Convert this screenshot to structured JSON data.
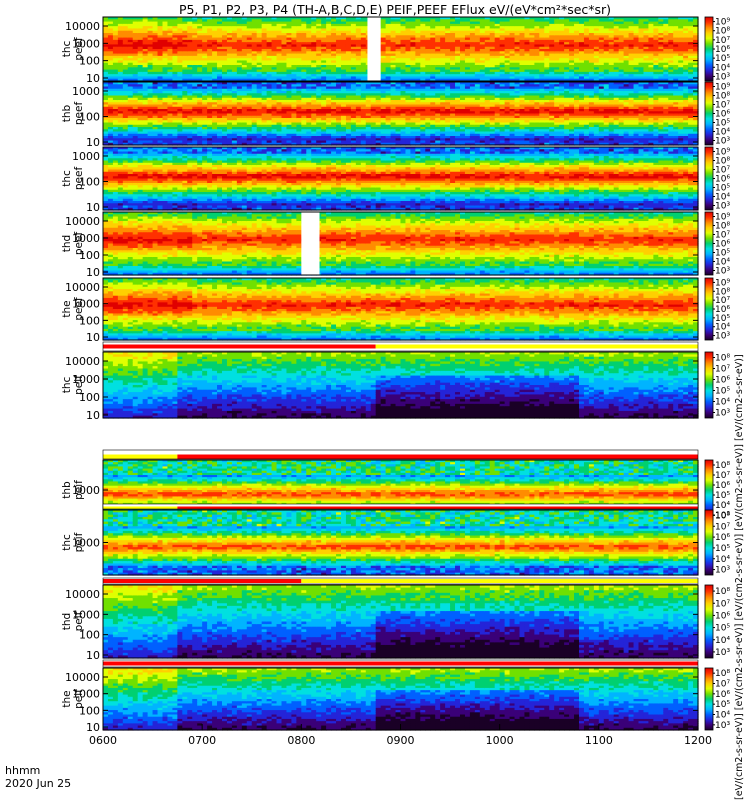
{
  "chart_data": {
    "type": "heatmap",
    "title": "P5, P1, P2, P3, P4 (TH-A,B,C,D,E) PEIF,PEEF EFlux eV/(eV*cm²*sec*sr)",
    "x_axis": {
      "label": "hhmm",
      "date": "2020 Jun 25",
      "range": [
        "0600",
        "1200"
      ],
      "ticks": [
        "0600",
        "0700",
        "0800",
        "0900",
        "1000",
        "1100",
        "1200"
      ]
    },
    "colorbar": {
      "label": "[eV/(cm2-s-sr-eV)] [eV/(cm2-s-sr-eV)] [eV/(cm2-s-sr-eV)] [eV/(cm2-s-sr-eV)] [eV/(cm2-s-sr-eV)]",
      "scale": "log",
      "colormap": "rainbow"
    },
    "panels": [
      {
        "probe": "thc",
        "product": "peef",
        "y_label": [
          "thc",
          "peef"
        ],
        "y_ticks": [
          "10",
          "100",
          "1000",
          "10000"
        ],
        "y_scale": "log",
        "cb_ticks": [
          "10³",
          "10⁴",
          "10⁵",
          "10⁶",
          "10⁷",
          "10⁸",
          "10⁹"
        ],
        "data_gaps_hhmm": [
          [
            "0840",
            "0848"
          ]
        ],
        "band": "electron",
        "quiet_band": false
      },
      {
        "probe": "thb",
        "product": "peef",
        "y_label": [
          "thb",
          "peef"
        ],
        "y_ticks": [
          "10",
          "100",
          "1000"
        ],
        "y_scale": "log",
        "cb_ticks": [
          "10³",
          "10⁴",
          "10⁵",
          "10⁶",
          "10⁷",
          "10⁸",
          "10⁹"
        ],
        "data_gaps_hhmm": [],
        "band": "electron",
        "quiet_band": true
      },
      {
        "probe": "thc",
        "product": "peef",
        "y_label": [
          "thc",
          "peef"
        ],
        "y_ticks": [
          "10",
          "100",
          "1000"
        ],
        "y_scale": "log",
        "cb_ticks": [
          "10³",
          "10⁴",
          "10⁵",
          "10⁶",
          "10⁷",
          "10⁸",
          "10⁹"
        ],
        "data_gaps_hhmm": [],
        "band": "electron",
        "quiet_band": true
      },
      {
        "probe": "thd",
        "product": "peef",
        "y_label": [
          "thd",
          "peef"
        ],
        "y_ticks": [
          "10",
          "100",
          "1000",
          "10000"
        ],
        "y_scale": "log",
        "cb_ticks": [
          "10³",
          "10⁴",
          "10⁵",
          "10⁶",
          "10⁷",
          "10⁸",
          "10⁹"
        ],
        "data_gaps_hhmm": [
          [
            "0800",
            "0811"
          ]
        ],
        "band": "electron",
        "quiet_band": false
      },
      {
        "probe": "the",
        "product": "peef",
        "y_label": [
          "the",
          "peef"
        ],
        "y_ticks": [
          "10",
          "100",
          "1000",
          "10000"
        ],
        "y_scale": "log",
        "cb_ticks": [
          "10³",
          "10⁴",
          "10⁵",
          "10⁶",
          "10⁷",
          "10⁸",
          "10⁹"
        ],
        "data_gaps_hhmm": [],
        "band": "electron",
        "quiet_band": false
      },
      {
        "probe": "thc",
        "product": "peif",
        "y_label": [
          "thc",
          "peif"
        ],
        "y_ticks": [
          "10",
          "100",
          "1000",
          "10000"
        ],
        "y_scale": "log",
        "cb_ticks": [
          "10³",
          "10⁴",
          "10⁵",
          "10⁶",
          "10⁷",
          "10⁸"
        ],
        "data_gaps_hhmm": [],
        "band": "ion",
        "quiet_band": false
      },
      {
        "probe": "thb",
        "product": "peif",
        "y_label": [
          "thb",
          "peif"
        ],
        "y_ticks": [
          "1000"
        ],
        "y_scale": "log",
        "cb_ticks": [
          "10³",
          "10⁴",
          "10⁵",
          "10⁶",
          "10⁷",
          "10⁸"
        ],
        "data_gaps_hhmm": [],
        "band": "ion",
        "quiet_band": true
      },
      {
        "probe": "thc",
        "product": "peif",
        "y_label": [
          "thc",
          "peif"
        ],
        "y_ticks": [
          "1000"
        ],
        "y_scale": "log",
        "cb_ticks": [
          "10³",
          "10⁴",
          "10⁵",
          "10⁶",
          "10⁷",
          "10⁸"
        ],
        "data_gaps_hhmm": [],
        "band": "ion",
        "quiet_band": true
      },
      {
        "probe": "thd",
        "product": "peif",
        "y_label": [
          "thd",
          "peif"
        ],
        "y_ticks": [
          "10",
          "100",
          "1000",
          "10000"
        ],
        "y_scale": "log",
        "cb_ticks": [
          "10³",
          "10⁴",
          "10⁵",
          "10⁶",
          "10⁷",
          "10⁸"
        ],
        "data_gaps_hhmm": [],
        "band": "ion",
        "quiet_band": false
      },
      {
        "probe": "the",
        "product": "peif",
        "y_label": [
          "the",
          "peif"
        ],
        "y_ticks": [
          "10",
          "100",
          "1000",
          "10000"
        ],
        "y_scale": "log",
        "cb_ticks": [
          "10³",
          "10⁴",
          "10⁵",
          "10⁶",
          "10⁷",
          "10⁸"
        ],
        "data_gaps_hhmm": [],
        "band": "ion",
        "quiet_band": false
      }
    ],
    "status_bars": [
      {
        "after_panel": 4,
        "red_until": "0845",
        "yellow_until": "1200"
      },
      {
        "after_panel": 5,
        "red_until": "0645",
        "yellow_until": "1200",
        "yellow_first": true
      },
      {
        "after_panel": 6,
        "red_until": "0645",
        "yellow_until": "1200",
        "yellow_first": true
      },
      {
        "after_panel": 7,
        "red_until": "0800",
        "yellow_until": "1200"
      },
      {
        "after_panel": 8,
        "red_until": "1200",
        "yellow_until": "1200"
      }
    ]
  },
  "colors": {
    "colormap": [
      "#1a0026",
      "#3a0078",
      "#2424d8",
      "#0060ff",
      "#00b4ff",
      "#00e0e0",
      "#00d070",
      "#70e000",
      "#e0ff00",
      "#ffd000",
      "#ff8c00",
      "#ff3000",
      "#e00000"
    ],
    "gap": "#ffffff",
    "status_red": "#ff0000",
    "status_yellow": "#ffff00"
  }
}
